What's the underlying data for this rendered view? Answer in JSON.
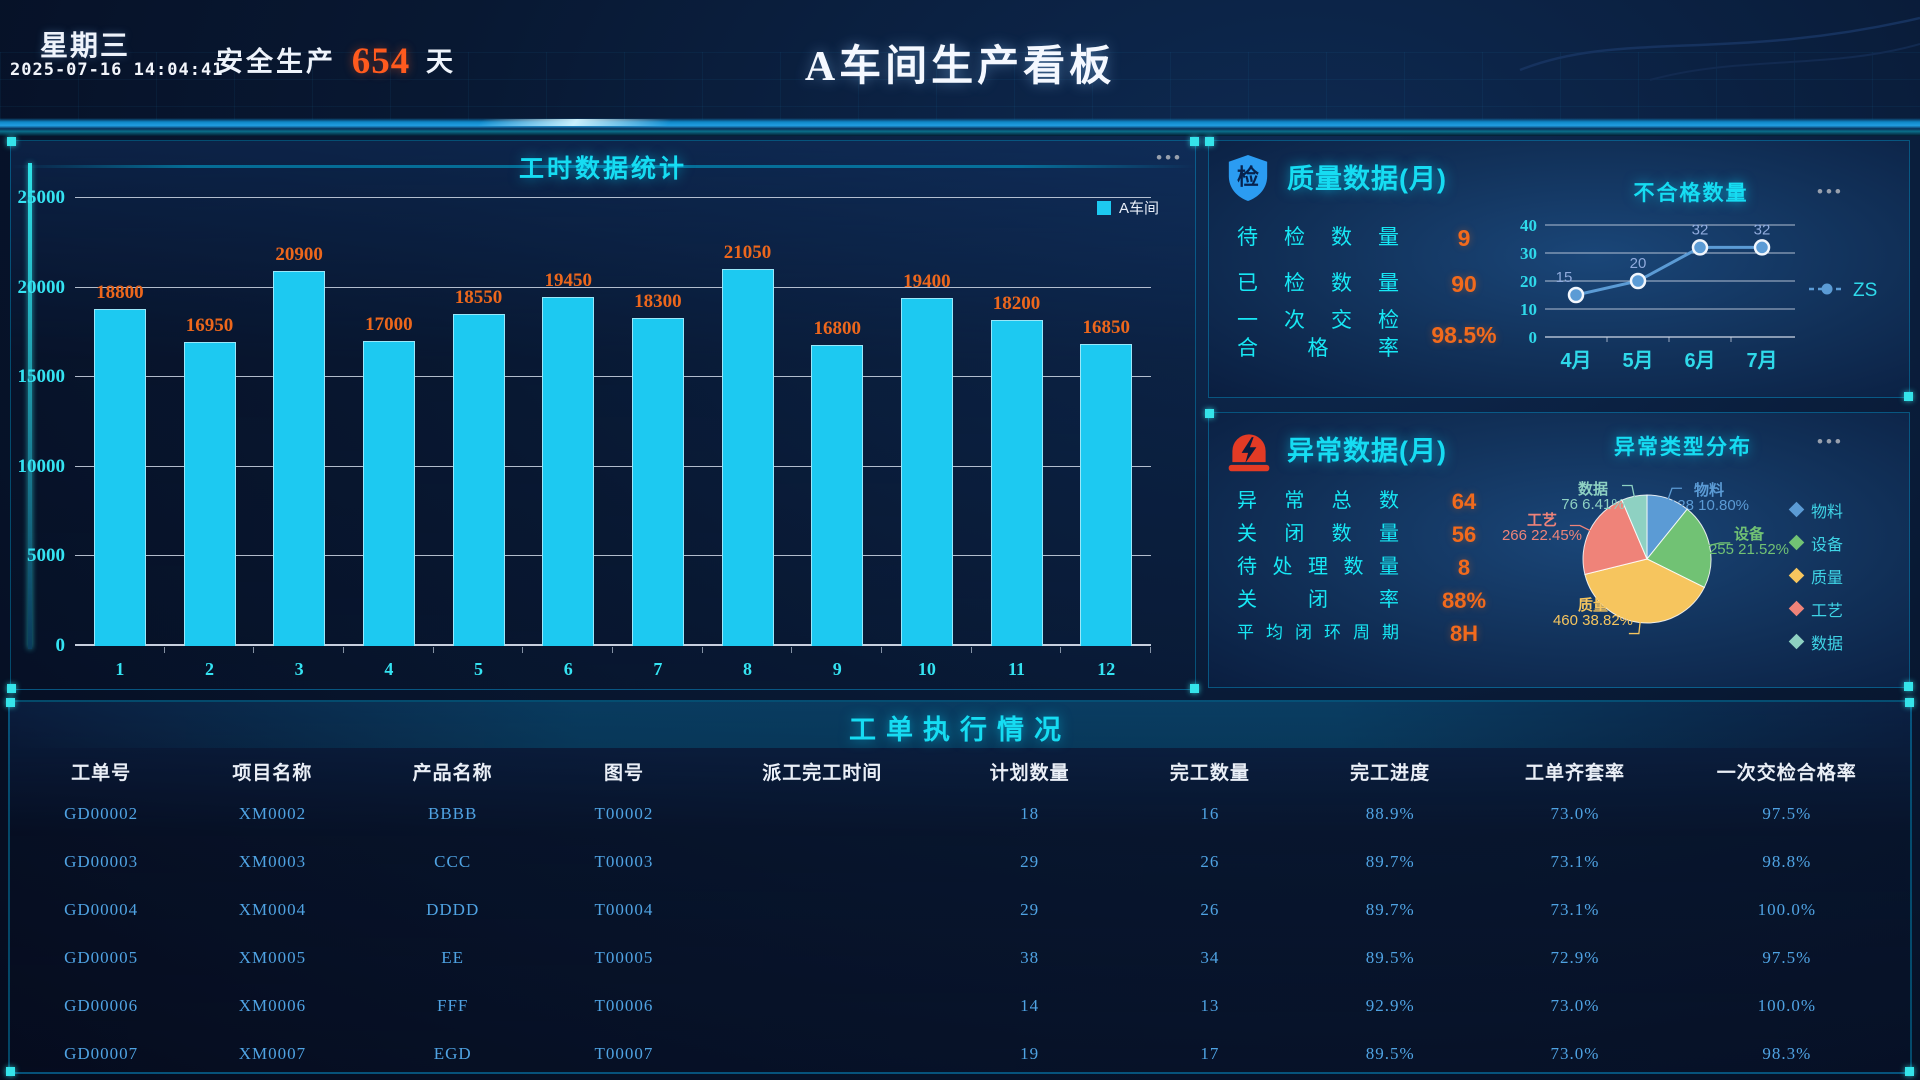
{
  "ui": {
    "more_icon": "•••"
  },
  "colors": {
    "accent_cyan": "#16dcf2",
    "accent_orange": "#f26a1c",
    "bar_fill": "#1dc9f1",
    "table_text": "#4fa3e3",
    "safety_number": "#ff5a1e"
  },
  "header": {
    "weekday": "星期三",
    "datetime": "2025-07-16 14:04:41",
    "safety_prefix": "安全生产",
    "safety_days": "654",
    "safety_suffix": "天",
    "title": "A车间生产看板"
  },
  "quality_panel": {
    "icon_char": "检",
    "title": "质量数据(月)",
    "stats": [
      {
        "label": "待检数量",
        "value": "9"
      },
      {
        "label": "已检数量",
        "value": "90"
      },
      {
        "label": "一次交检\n合格率",
        "value": "98.5%"
      }
    ]
  },
  "exception_panel": {
    "title": "异常数据(月)",
    "stats": [
      {
        "label": "异常总数",
        "value": "64"
      },
      {
        "label": "关闭数量",
        "value": "56"
      },
      {
        "label": "待处理数量",
        "value": "8"
      },
      {
        "label": "关闭率",
        "value": "88%"
      },
      {
        "label": "平均闭环周期",
        "value": "8H"
      }
    ]
  },
  "orders_panel": {
    "title": "工单执行情况",
    "columns": [
      "工单号",
      "项目名称",
      "产品名称",
      "图号",
      "派工完工时间",
      "计划数量",
      "完工数量",
      "完工进度",
      "工单齐套率",
      "一次交检合格率"
    ],
    "rows": [
      [
        "GD00002",
        "XM0002",
        "BBBB",
        "T00002",
        "",
        "18",
        "16",
        "88.9%",
        "73.0%",
        "97.5%"
      ],
      [
        "GD00003",
        "XM0003",
        "CCC",
        "T00003",
        "",
        "29",
        "26",
        "89.7%",
        "73.1%",
        "98.8%"
      ],
      [
        "GD00004",
        "XM0004",
        "DDDD",
        "T00004",
        "",
        "29",
        "26",
        "89.7%",
        "73.1%",
        "100.0%"
      ],
      [
        "GD00005",
        "XM0005",
        "EE",
        "T00005",
        "",
        "38",
        "34",
        "89.5%",
        "72.9%",
        "97.5%"
      ],
      [
        "GD00006",
        "XM0006",
        "FFF",
        "T00006",
        "",
        "14",
        "13",
        "92.9%",
        "73.0%",
        "100.0%"
      ],
      [
        "GD00007",
        "XM0007",
        "EGD",
        "T00007",
        "",
        "19",
        "17",
        "89.5%",
        "73.0%",
        "98.3%"
      ]
    ]
  },
  "chart_data": [
    {
      "id": "work_hours",
      "type": "bar",
      "title": "工时数据统计",
      "categories": [
        "1",
        "2",
        "3",
        "4",
        "5",
        "6",
        "7",
        "8",
        "9",
        "10",
        "11",
        "12"
      ],
      "series": [
        {
          "name": "A车间",
          "values": [
            18800,
            16950,
            20900,
            17000,
            18550,
            19450,
            18300,
            21050,
            16800,
            19400,
            18200,
            16850
          ]
        }
      ],
      "ylim": [
        0,
        25000
      ],
      "yticks": [
        0,
        5000,
        10000,
        15000,
        20000,
        25000
      ],
      "grid": true,
      "legend_position": "top-right",
      "bar_color": "#1dc9f1",
      "value_label_color": "#ed671c"
    },
    {
      "id": "defect_count",
      "type": "line",
      "title": "不合格数量",
      "categories": [
        "4月",
        "5月",
        "6月",
        "7月"
      ],
      "series": [
        {
          "name": "ZS",
          "values": [
            15,
            20,
            32,
            32
          ]
        }
      ],
      "ylim": [
        0,
        40
      ],
      "yticks": [
        0,
        10,
        20,
        30,
        40
      ],
      "grid": true,
      "legend_position": "right",
      "line_color": "#5b9bd5",
      "point_label_color": "#8faadc"
    },
    {
      "id": "exception_types",
      "type": "pie",
      "title": "异常类型分布",
      "slices": [
        {
          "name": "物料",
          "value": 128,
          "pct": "10.80%",
          "color": "#5b9bd5"
        },
        {
          "name": "设备",
          "value": 255,
          "pct": "21.52%",
          "color": "#71c274"
        },
        {
          "name": "质量",
          "value": 460,
          "pct": "38.82%",
          "color": "#f6c55e"
        },
        {
          "name": "工艺",
          "value": 266,
          "pct": "22.45%",
          "color": "#ef8379"
        },
        {
          "name": "数据",
          "value": 76,
          "pct": "6.41%",
          "color": "#8ed1c2"
        }
      ],
      "legend_position": "right"
    }
  ]
}
